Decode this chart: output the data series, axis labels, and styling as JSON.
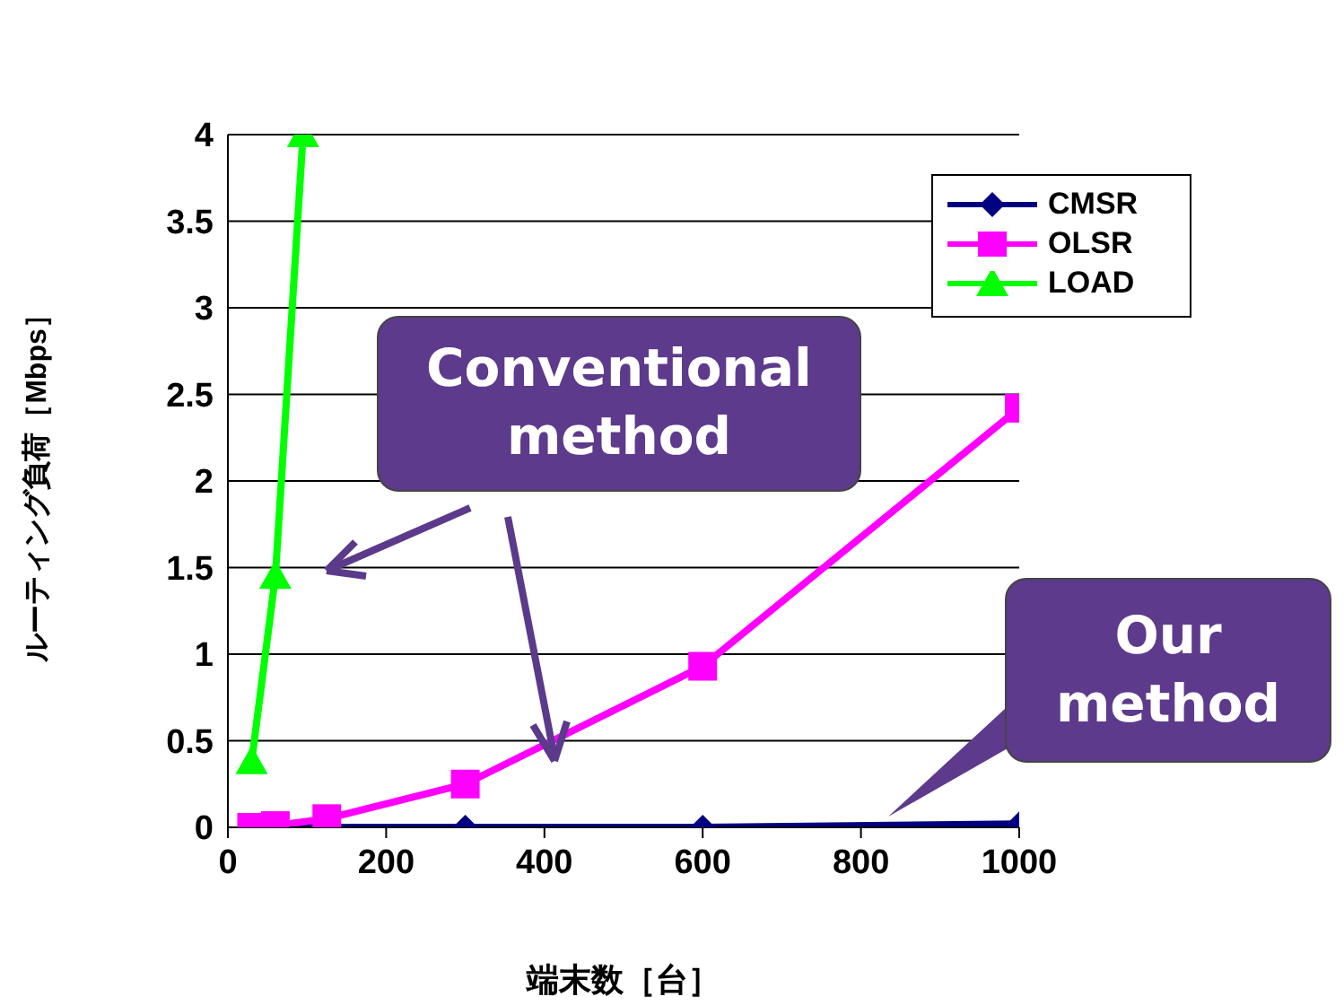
{
  "chart_data": {
    "type": "line",
    "xlabel": "端末数［台］",
    "ylabel": "ルーティング負荷［Mbps］",
    "xlim": [
      0,
      1000
    ],
    "xticks": [
      0,
      200,
      400,
      600,
      800,
      1000
    ],
    "ylim": [
      0,
      4
    ],
    "yticks": [
      0,
      {
        "value": 0.5,
        "label": "0.5"
      },
      1,
      {
        "value": 1.5,
        "label": "1.5"
      },
      2,
      {
        "value": 2.5,
        "label": "2.5"
      },
      3,
      {
        "value": 3.5,
        "label": "3.5"
      },
      4
    ],
    "grid": "y",
    "legend": "top right",
    "series": [
      {
        "name": "CMSR",
        "color": "#000080",
        "marker": "diamond",
        "x": [
          30,
          60,
          125,
          300,
          600,
          1000
        ],
        "values": [
          0,
          0,
          0,
          0,
          0,
          0.02
        ]
      },
      {
        "name": "OLSR",
        "color": "#ff00ff",
        "marker": "square",
        "x": [
          30,
          60,
          125,
          300,
          600,
          1000
        ],
        "values": [
          0,
          0.01,
          0.05,
          0.25,
          0.93,
          2.42
        ]
      },
      {
        "name": "LOAD",
        "color": "#00ff00",
        "marker": "triangle",
        "x": [
          30,
          60,
          95
        ],
        "values": [
          0.38,
          1.45,
          4
        ]
      }
    ],
    "annotations": [
      "Conventional method",
      "Our method"
    ]
  }
}
